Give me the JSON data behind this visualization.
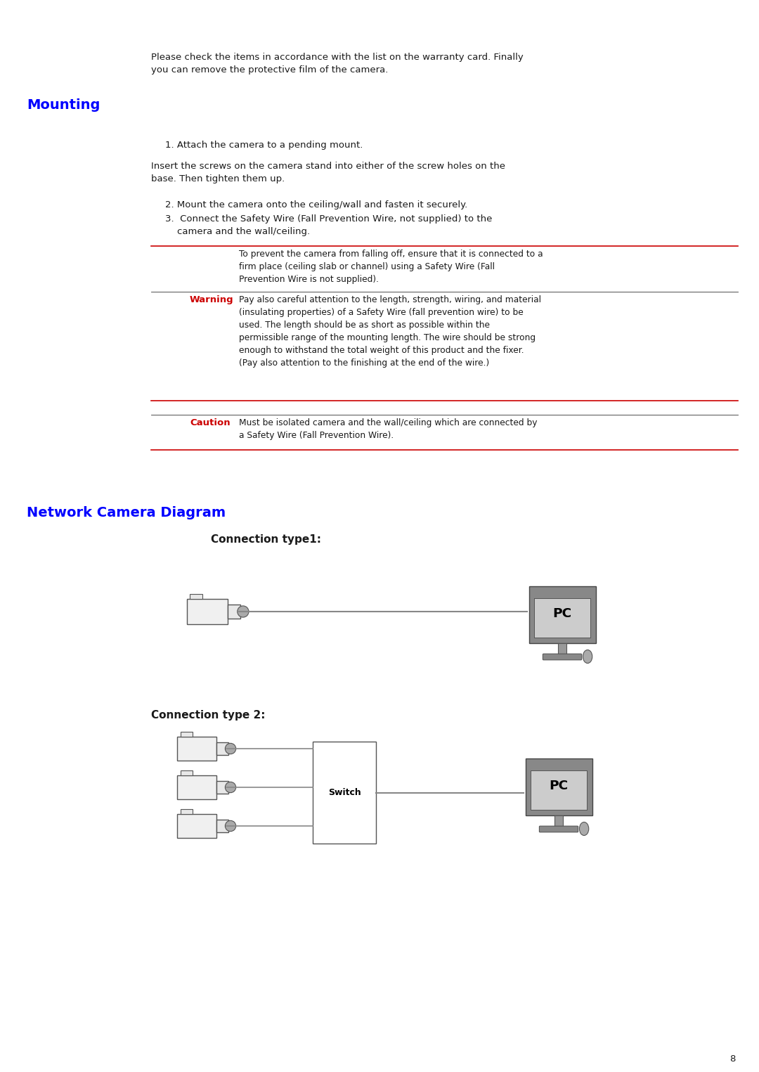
{
  "bg_color": "#ffffff",
  "page_number": "8",
  "intro_text": "Please check the items in accordance with the list on the warranty card. Finally\nyou can remove the protective film of the camera.",
  "mounting_title": "Mounting",
  "mounting_title_color": "#0000ff",
  "step1": "1. Attach the camera to a pending mount.",
  "step1_indent": true,
  "insert_text": "Insert the screws on the camera stand into either of the screw holes on the\nbase. Then tighten them up.",
  "step2": "2. Mount the camera onto the ceiling/wall and fasten it securely.",
  "step3": "3.  Connect the Safety Wire (Fall Prevention Wire, not supplied) to the\n    camera and the wall/ceiling.",
  "warning_color": "#cc0000",
  "warning_label": "Warning",
  "warning_text1": "To prevent the camera from falling off, ensure that it is connected to a\nfirm place (ceiling slab or channel) using a Safety Wire (Fall\nPrevention Wire is not supplied).",
  "warning_text2": "Pay also careful attention to the length, strength, wiring, and material\n(insulating properties) of a Safety Wire (fall prevention wire) to be\nused. The length should be as short as possible within the\npermissible range of the mounting length. The wire should be strong\nenough to withstand the total weight of this product and the fixer.\n(Pay also attention to the finishing at the end of the wire.)",
  "caution_label": "Caution",
  "caution_text": "Must be isolated camera and the wall/ceiling which are connected by\na Safety Wire (Fall Prevention Wire).",
  "network_title": "Network Camera Diagram",
  "network_title_color": "#0000ff",
  "conn1_label": "Connection type1:",
  "conn2_label": "Connection type 2:",
  "switch_label": "Switch",
  "pc_label": "PC"
}
